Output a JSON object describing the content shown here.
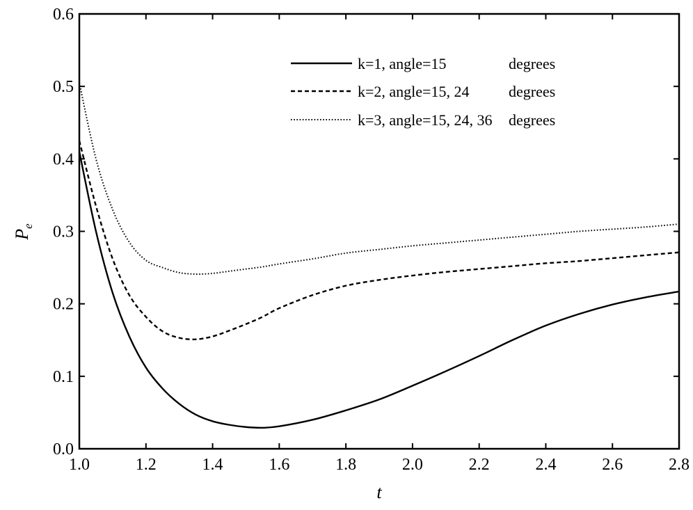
{
  "chart_data": {
    "type": "line",
    "title": "",
    "xlabel": "t",
    "ylabel": "P",
    "ylabel_sub": "e",
    "xlim": [
      1.0,
      2.8
    ],
    "ylim": [
      0.0,
      0.6
    ],
    "xticks": [
      1.0,
      1.2,
      1.4,
      1.6,
      1.8,
      2.0,
      2.2,
      2.4,
      2.6,
      2.8
    ],
    "xtick_labels": [
      "1.0",
      "1.2",
      "1.4",
      "1.6",
      "1.8",
      "2.0",
      "2.2",
      "2.4",
      "2.6",
      "2.8"
    ],
    "yticks": [
      0.0,
      0.1,
      0.2,
      0.3,
      0.4,
      0.5,
      0.6
    ],
    "ytick_labels": [
      "0.0",
      "0.1",
      "0.2",
      "0.3",
      "0.4",
      "0.5",
      "0.6"
    ],
    "grid": false,
    "legend_position": "top-right",
    "series": [
      {
        "name": "k=1, angle=15",
        "unit": "degrees",
        "style": "solid",
        "x": [
          1.0,
          1.05,
          1.1,
          1.15,
          1.2,
          1.25,
          1.3,
          1.35,
          1.4,
          1.45,
          1.5,
          1.55,
          1.6,
          1.7,
          1.8,
          1.9,
          2.0,
          2.1,
          2.2,
          2.3,
          2.4,
          2.5,
          2.6,
          2.7,
          2.8
        ],
        "y": [
          0.41,
          0.3,
          0.215,
          0.155,
          0.112,
          0.083,
          0.062,
          0.047,
          0.038,
          0.033,
          0.03,
          0.029,
          0.031,
          0.04,
          0.053,
          0.068,
          0.087,
          0.107,
          0.128,
          0.15,
          0.17,
          0.186,
          0.199,
          0.209,
          0.217
        ]
      },
      {
        "name": "k=2, angle=15, 24",
        "unit": "degrees",
        "style": "dashed",
        "x": [
          1.0,
          1.05,
          1.1,
          1.15,
          1.2,
          1.25,
          1.3,
          1.35,
          1.4,
          1.45,
          1.5,
          1.55,
          1.6,
          1.7,
          1.8,
          1.9,
          2.0,
          2.1,
          2.2,
          2.3,
          2.4,
          2.5,
          2.6,
          2.7,
          2.8
        ],
        "y": [
          0.425,
          0.335,
          0.262,
          0.212,
          0.182,
          0.162,
          0.153,
          0.151,
          0.155,
          0.163,
          0.172,
          0.182,
          0.194,
          0.212,
          0.225,
          0.233,
          0.239,
          0.244,
          0.248,
          0.252,
          0.256,
          0.259,
          0.263,
          0.267,
          0.271
        ]
      },
      {
        "name": "k=3, angle=15, 24, 36",
        "unit": "degrees",
        "style": "dotted",
        "x": [
          1.0,
          1.05,
          1.1,
          1.15,
          1.2,
          1.25,
          1.3,
          1.35,
          1.4,
          1.45,
          1.5,
          1.55,
          1.6,
          1.7,
          1.8,
          1.9,
          2.0,
          2.1,
          2.2,
          2.3,
          2.4,
          2.5,
          2.6,
          2.7,
          2.8
        ],
        "y": [
          0.505,
          0.4,
          0.33,
          0.285,
          0.26,
          0.25,
          0.243,
          0.241,
          0.242,
          0.245,
          0.248,
          0.251,
          0.255,
          0.262,
          0.27,
          0.275,
          0.28,
          0.284,
          0.288,
          0.292,
          0.296,
          0.3,
          0.303,
          0.306,
          0.31
        ]
      }
    ]
  }
}
